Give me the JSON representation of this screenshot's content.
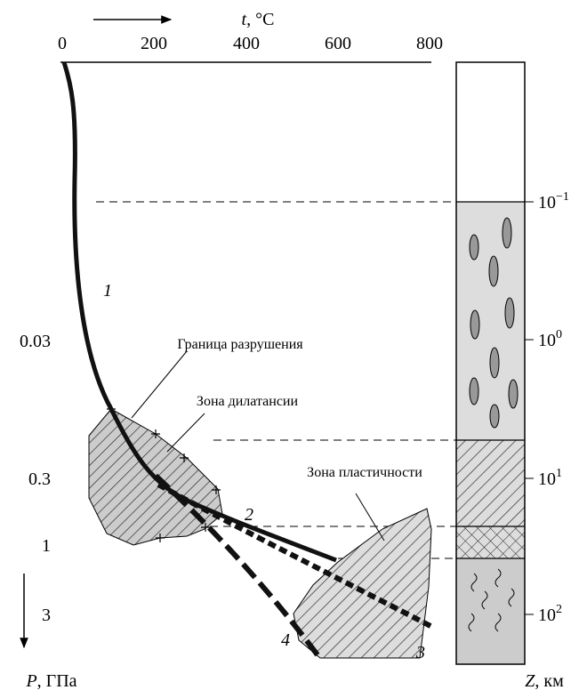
{
  "top_axis": {
    "var": "t",
    "unit": ", °C",
    "ticks": [
      "0",
      "200",
      "400",
      "600",
      "800"
    ]
  },
  "left_axis": {
    "var": "P",
    "unit": ", ГПа",
    "ticks": [
      "0.03",
      "0.3",
      "1",
      "3"
    ]
  },
  "right_axis": {
    "var": "Z",
    "unit": ", км",
    "ticks": [
      {
        "base": "10",
        "exp": "−1"
      },
      {
        "base": "10",
        "exp": "0"
      },
      {
        "base": "10",
        "exp": "1"
      },
      {
        "base": "10",
        "exp": "2"
      }
    ]
  },
  "annotations": [
    "Граница разрушения",
    "Зона дилатансии",
    "Зона пластичности"
  ],
  "curve_labels": [
    "1",
    "2",
    "3",
    "4"
  ]
}
